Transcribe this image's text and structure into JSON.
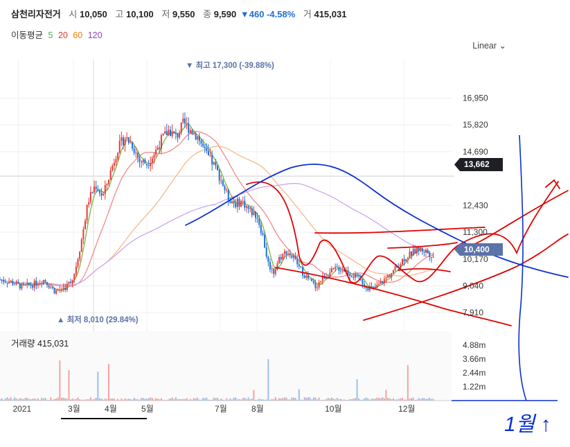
{
  "header": {
    "name": "삼천리자전거",
    "open_label": "시",
    "open": "10,050",
    "high_label": "고",
    "high": "10,100",
    "low_label": "저",
    "low": "9,550",
    "close_label": "종",
    "close": "9,590",
    "change": "▼460 -4.58%",
    "volume_label": "거",
    "volume": "415,031"
  },
  "ma_legend": {
    "label": "이동평균",
    "items": [
      {
        "name": "5",
        "color": "#4caf50"
      },
      {
        "name": "20",
        "color": "#e53935"
      },
      {
        "name": "60",
        "color": "#f57c00"
      },
      {
        "name": "120",
        "color": "#8e44ad"
      }
    ]
  },
  "scale_button": "Linear",
  "annotations": {
    "max_label": "▼ 최고 17,300 (-39.88%)",
    "min_label": "▲ 최저 8,010 (29.84%)",
    "last_tag": "13,662",
    "current_tag": "10,400"
  },
  "volume_panel": {
    "title": "거래량 415,031"
  },
  "handwriting": {
    "text": "1월 ↑"
  },
  "colors": {
    "up": "#e53935",
    "down": "#1f6fd1",
    "ink_red": "#e00000",
    "ink_blue": "#0a2fd0"
  },
  "chart_data": {
    "type": "candlestick",
    "y_ticks": [
      "16,950",
      "15,820",
      "14,690",
      "12,430",
      "11,300",
      "10,170",
      "9,040",
      "7,910"
    ],
    "y_tick_values": [
      16950,
      15820,
      14690,
      12430,
      11300,
      10170,
      9040,
      7910
    ],
    "ylim": [
      7360,
      18600
    ],
    "x_ticks": [
      "2021",
      "3월",
      "4월",
      "5월",
      "7월",
      "8월",
      "10월",
      "12월"
    ],
    "x_tick_pos": [
      0.5,
      2,
      3,
      4,
      6,
      7,
      9,
      11
    ],
    "xlim": [
      0,
      12.3
    ],
    "price_path": [
      [
        0,
        9.3
      ],
      [
        0.3,
        9.2
      ],
      [
        0.6,
        9.0
      ],
      [
        0.9,
        9.1
      ],
      [
        1.2,
        9.3
      ],
      [
        1.5,
        8.8
      ],
      [
        1.8,
        9.0
      ],
      [
        2.0,
        9.4
      ],
      [
        2.2,
        10.8
      ],
      [
        2.4,
        12.6
      ],
      [
        2.6,
        13.3
      ],
      [
        2.8,
        12.8
      ],
      [
        3.0,
        13.8
      ],
      [
        3.2,
        14.8
      ],
      [
        3.4,
        15.3
      ],
      [
        3.6,
        15.0
      ],
      [
        3.8,
        14.3
      ],
      [
        4.0,
        14.2
      ],
      [
        4.2,
        14.6
      ],
      [
        4.4,
        15.2
      ],
      [
        4.6,
        15.6
      ],
      [
        4.8,
        15.3
      ],
      [
        5.0,
        15.9
      ],
      [
        5.2,
        15.6
      ],
      [
        5.4,
        15.3
      ],
      [
        5.6,
        14.6
      ],
      [
        5.8,
        14.2
      ],
      [
        6.0,
        13.6
      ],
      [
        6.2,
        12.8
      ],
      [
        6.4,
        12.5
      ],
      [
        6.6,
        12.6
      ],
      [
        6.8,
        12.2
      ],
      [
        7.0,
        12.0
      ],
      [
        7.15,
        11.2
      ],
      [
        7.3,
        10.0
      ],
      [
        7.45,
        9.6
      ],
      [
        7.6,
        10.2
      ],
      [
        7.8,
        10.5
      ],
      [
        8.0,
        10.2
      ],
      [
        8.2,
        9.7
      ],
      [
        8.4,
        9.3
      ],
      [
        8.6,
        9.0
      ],
      [
        8.8,
        9.4
      ],
      [
        9.0,
        9.6
      ],
      [
        9.2,
        9.8
      ],
      [
        9.4,
        9.7
      ],
      [
        9.6,
        9.5
      ],
      [
        9.8,
        9.3
      ],
      [
        10.0,
        9.0
      ],
      [
        10.2,
        8.9
      ],
      [
        10.4,
        9.2
      ],
      [
        10.6,
        9.5
      ],
      [
        10.8,
        9.8
      ],
      [
        11.0,
        10.2
      ],
      [
        11.2,
        10.4
      ],
      [
        11.4,
        10.6
      ],
      [
        11.6,
        10.5
      ],
      [
        11.8,
        10.3
      ]
    ],
    "series": [
      {
        "name": "5"
      },
      {
        "name": "20"
      },
      {
        "name": "60"
      },
      {
        "name": "120"
      }
    ],
    "volume_ticks": [
      "4.88m",
      "3.66m",
      "2.44m",
      "1.22m"
    ],
    "volume_tick_values": [
      4.88,
      3.66,
      2.44,
      1.22
    ],
    "volume_ylim": [
      0,
      6.1
    ]
  }
}
